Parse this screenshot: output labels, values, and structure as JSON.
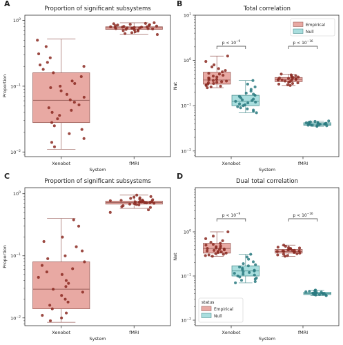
{
  "colors": {
    "empirical_fill": "#e8a9a3",
    "empirical_edge": "#9a5f5a",
    "empirical_point": "#8b2a22",
    "null_fill": "#a9dede",
    "null_edge": "#4d8f90",
    "null_point": "#2a7a80"
  },
  "chart_data": [
    {
      "panel": "A",
      "type": "box",
      "title": "Proportion of significant subsystems",
      "xlabel": "System",
      "ylabel": "Proportion",
      "yscale": "log",
      "ylim": [
        0.0085,
        1.2
      ],
      "yticks": [
        {
          "value": 0.01,
          "base": "10",
          "exp": "−2"
        },
        {
          "value": 0.1,
          "base": "10",
          "exp": "−1"
        },
        {
          "value": 1,
          "base": "10",
          "exp": "0"
        }
      ],
      "categories": [
        "Xenobot",
        "fMRI"
      ],
      "boxes": [
        {
          "category": "Xenobot",
          "status": "Empirical",
          "min": 0.011,
          "q1": 0.028,
          "median": 0.061,
          "q3": 0.16,
          "max": 0.52,
          "points": [
            0.5,
            0.4,
            0.31,
            0.27,
            0.23,
            0.21,
            0.2,
            0.18,
            0.16,
            0.14,
            0.12,
            0.11,
            0.1,
            0.095,
            0.085,
            0.075,
            0.068,
            0.062,
            0.057,
            0.052,
            0.047,
            0.043,
            0.04,
            0.036,
            0.032,
            0.028,
            0.025,
            0.022,
            0.019,
            0.016,
            0.014,
            0.012
          ]
        },
        {
          "category": "fMRI",
          "status": "Empirical",
          "min": 0.62,
          "q1": 0.73,
          "median": 0.77,
          "q3": 0.8,
          "max": 0.92,
          "points": [
            0.92,
            0.9,
            0.89,
            0.87,
            0.86,
            0.85,
            0.84,
            0.83,
            0.82,
            0.81,
            0.8,
            0.8,
            0.79,
            0.79,
            0.78,
            0.78,
            0.77,
            0.77,
            0.76,
            0.76,
            0.75,
            0.75,
            0.74,
            0.73,
            0.72,
            0.71,
            0.7,
            0.69,
            0.67,
            0.65,
            0.63,
            0.61
          ]
        }
      ]
    },
    {
      "panel": "B",
      "type": "box",
      "title": "Total correlation",
      "xlabel": "System",
      "ylabel": "Nat",
      "yscale": "log",
      "ylim": [
        0.0075,
        10
      ],
      "yticks": [
        {
          "value": 0.01,
          "base": "10",
          "exp": "−2"
        },
        {
          "value": 0.1,
          "base": "10",
          "exp": "−1"
        },
        {
          "value": 1,
          "base": "10",
          "exp": "0"
        },
        {
          "value": 10,
          "base": "10",
          "exp": "1"
        }
      ],
      "categories": [
        "Xenobot",
        "fMRI"
      ],
      "legend": {
        "position": "top-right",
        "title": "",
        "entries": [
          "Empirical",
          "Null"
        ]
      },
      "annotations": [
        {
          "category": "Xenobot",
          "text": "p < 10",
          "exp": "−9"
        },
        {
          "category": "fMRI",
          "text": "p < 10",
          "exp": "−16"
        }
      ],
      "boxes": [
        {
          "category": "Xenobot",
          "status": "Empirical",
          "min": 0.25,
          "q1": 0.3,
          "median": 0.37,
          "q3": 0.55,
          "max": 1.25,
          "points": [
            1.25,
            0.95,
            0.8,
            0.72,
            0.66,
            0.6,
            0.56,
            0.52,
            0.5,
            0.47,
            0.45,
            0.43,
            0.41,
            0.4,
            0.38,
            0.37,
            0.36,
            0.35,
            0.34,
            0.33,
            0.32,
            0.31,
            0.3,
            0.29,
            0.28,
            0.27,
            0.26,
            0.25
          ]
        },
        {
          "category": "Xenobot",
          "status": "Null",
          "min": 0.07,
          "q1": 0.1,
          "median": 0.125,
          "q3": 0.17,
          "max": 0.36,
          "points": [
            0.36,
            0.3,
            0.26,
            0.23,
            0.21,
            0.19,
            0.18,
            0.17,
            0.16,
            0.15,
            0.14,
            0.135,
            0.13,
            0.125,
            0.12,
            0.115,
            0.11,
            0.105,
            0.1,
            0.095,
            0.09,
            0.085,
            0.08,
            0.075,
            0.07
          ]
        },
        {
          "category": "fMRI",
          "status": "Empirical",
          "min": 0.28,
          "q1": 0.34,
          "median": 0.38,
          "q3": 0.42,
          "max": 0.5,
          "points": [
            0.5,
            0.48,
            0.46,
            0.45,
            0.44,
            0.43,
            0.42,
            0.41,
            0.4,
            0.39,
            0.39,
            0.38,
            0.38,
            0.37,
            0.37,
            0.36,
            0.35,
            0.34,
            0.33,
            0.32,
            0.31,
            0.3,
            0.29,
            0.28
          ]
        },
        {
          "category": "fMRI",
          "status": "Null",
          "min": 0.035,
          "q1": 0.037,
          "median": 0.039,
          "q3": 0.042,
          "max": 0.046,
          "points": [
            0.046,
            0.045,
            0.044,
            0.043,
            0.042,
            0.042,
            0.041,
            0.041,
            0.04,
            0.04,
            0.039,
            0.039,
            0.038,
            0.038,
            0.037,
            0.037,
            0.036,
            0.036,
            0.035
          ]
        }
      ]
    },
    {
      "panel": "C",
      "type": "box",
      "title": "Proportion of significant subsystems",
      "xlabel": "System",
      "ylabel": "Proportion",
      "yscale": "log",
      "ylim": [
        0.0075,
        1.25
      ],
      "yticks": [
        {
          "value": 0.01,
          "base": "10",
          "exp": "−2"
        },
        {
          "value": 0.1,
          "base": "10",
          "exp": "−1"
        },
        {
          "value": 1,
          "base": "10",
          "exp": "0"
        }
      ],
      "categories": [
        "Xenobot",
        "fMRI"
      ],
      "boxes": [
        {
          "category": "Xenobot",
          "status": "Empirical",
          "min": 0.0085,
          "q1": 0.014,
          "median": 0.029,
          "q3": 0.08,
          "max": 0.4,
          "points": [
            0.38,
            0.3,
            0.2,
            0.17,
            0.14,
            0.12,
            0.1,
            0.09,
            0.08,
            0.07,
            0.062,
            0.055,
            0.05,
            0.045,
            0.04,
            0.036,
            0.032,
            0.029,
            0.026,
            0.023,
            0.02,
            0.018,
            0.016,
            0.014,
            0.012,
            0.011,
            0.01,
            0.009
          ]
        },
        {
          "category": "fMRI",
          "status": "Empirical",
          "min": 0.58,
          "q1": 0.68,
          "median": 0.72,
          "q3": 0.76,
          "max": 0.95,
          "points": [
            0.95,
            0.9,
            0.88,
            0.86,
            0.84,
            0.82,
            0.8,
            0.79,
            0.78,
            0.77,
            0.76,
            0.75,
            0.75,
            0.74,
            0.74,
            0.73,
            0.72,
            0.72,
            0.71,
            0.7,
            0.69,
            0.68,
            0.67,
            0.66,
            0.64,
            0.62,
            0.6,
            0.55,
            0.5
          ]
        }
      ]
    },
    {
      "panel": "D",
      "type": "box",
      "title": "Dual total correlation",
      "xlabel": "System",
      "ylabel": "Nat",
      "yscale": "log",
      "ylim": [
        0.0075,
        10
      ],
      "yticks": [
        {
          "value": 0.01,
          "base": "10",
          "exp": "−2"
        },
        {
          "value": 0.1,
          "base": "10",
          "exp": "−1"
        },
        {
          "value": 1,
          "base": "10",
          "exp": "0"
        }
      ],
      "categories": [
        "Xenobot",
        "fMRI"
      ],
      "legend": {
        "position": "bottom-left",
        "title": "status",
        "entries": [
          "Empirical",
          "Null"
        ]
      },
      "annotations": [
        {
          "category": "Xenobot",
          "text": "p < 10",
          "exp": "−9"
        },
        {
          "category": "fMRI",
          "text": "p < 10",
          "exp": "−16"
        }
      ],
      "boxes": [
        {
          "category": "Xenobot",
          "status": "Empirical",
          "min": 0.28,
          "q1": 0.33,
          "median": 0.42,
          "q3": 0.55,
          "max": 1.0,
          "points": [
            1.0,
            0.8,
            0.7,
            0.63,
            0.58,
            0.55,
            0.52,
            0.5,
            0.48,
            0.46,
            0.44,
            0.43,
            0.42,
            0.41,
            0.4,
            0.39,
            0.38,
            0.37,
            0.36,
            0.35,
            0.34,
            0.33,
            0.32,
            0.31,
            0.3,
            0.29,
            0.28
          ]
        },
        {
          "category": "Xenobot",
          "status": "Null",
          "min": 0.07,
          "q1": 0.1,
          "median": 0.13,
          "q3": 0.17,
          "max": 0.31,
          "points": [
            0.31,
            0.27,
            0.24,
            0.21,
            0.19,
            0.18,
            0.17,
            0.16,
            0.15,
            0.14,
            0.135,
            0.13,
            0.125,
            0.12,
            0.115,
            0.11,
            0.105,
            0.1,
            0.095,
            0.09,
            0.085,
            0.08,
            0.075,
            0.07
          ]
        },
        {
          "category": "fMRI",
          "status": "Empirical",
          "min": 0.28,
          "q1": 0.33,
          "median": 0.36,
          "q3": 0.4,
          "max": 0.5,
          "points": [
            0.5,
            0.47,
            0.45,
            0.44,
            0.43,
            0.42,
            0.41,
            0.4,
            0.39,
            0.38,
            0.38,
            0.37,
            0.37,
            0.36,
            0.36,
            0.35,
            0.34,
            0.33,
            0.32,
            0.31,
            0.3,
            0.29,
            0.28
          ]
        },
        {
          "category": "fMRI",
          "status": "Null",
          "min": 0.036,
          "q1": 0.038,
          "median": 0.04,
          "q3": 0.043,
          "max": 0.048,
          "points": [
            0.048,
            0.047,
            0.046,
            0.045,
            0.044,
            0.043,
            0.042,
            0.042,
            0.041,
            0.041,
            0.04,
            0.04,
            0.039,
            0.039,
            0.038,
            0.038,
            0.037,
            0.037,
            0.036
          ]
        }
      ]
    }
  ],
  "panel_labels": [
    "A",
    "B",
    "C",
    "D"
  ]
}
